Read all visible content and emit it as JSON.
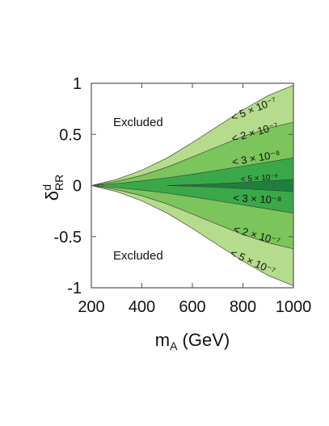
{
  "chart_data": {
    "type": "area",
    "xlabel": "m_A (GeV)",
    "ylabel": "δ^d_RR",
    "xlim": [
      200,
      1000
    ],
    "ylim": [
      -1,
      1
    ],
    "x_ticks": [
      "200",
      "400",
      "600",
      "800",
      "1000"
    ],
    "y_ticks": [
      "1",
      "0.5",
      "0",
      "-0.5",
      "-1"
    ],
    "grid": false,
    "region_labels": [
      "Excluded",
      "Excluded"
    ],
    "x": [
      200,
      300,
      400,
      500,
      600,
      700,
      800,
      900,
      1000
    ],
    "bands": [
      {
        "label": "< 5 × 10⁻⁷",
        "color": "#b5db8c",
        "upper": [
          0.0,
          0.06,
          0.15,
          0.27,
          0.42,
          0.58,
          0.74,
          0.88,
          0.98
        ]
      },
      {
        "label": "< 2 × 10⁻⁷",
        "color": "#7cc45c",
        "upper": [
          0.0,
          0.04,
          0.1,
          0.18,
          0.28,
          0.38,
          0.48,
          0.56,
          0.62
        ]
      },
      {
        "label": "< 3 × 10⁻⁸",
        "color": "#3aa848",
        "upper": [
          0.0,
          0.02,
          0.045,
          0.075,
          0.11,
          0.15,
          0.19,
          0.23,
          0.27
        ]
      }
    ],
    "core_band": {
      "label": "< 5 × 10⁻⁹",
      "color": "#1f7f3c",
      "x": [
        500,
        600,
        700,
        800,
        900,
        1000
      ],
      "upper": [
        0.0,
        0.008,
        0.018,
        0.03,
        0.045,
        0.06
      ]
    }
  },
  "colors": {
    "excluded": "#ffffff",
    "frame": "#555555"
  }
}
